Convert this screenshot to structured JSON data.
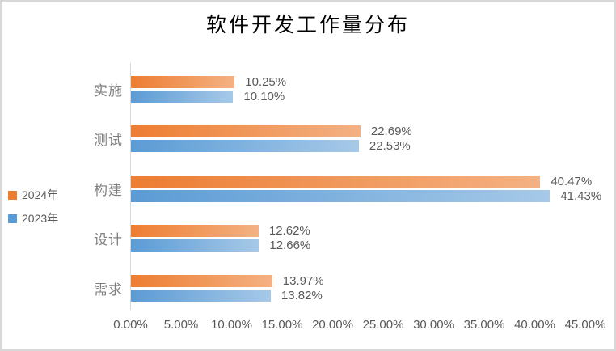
{
  "window": {
    "background": "#ffffff",
    "border_color": "#d8d8d8",
    "axis_line_color": "#d9d9d9",
    "text_color": "#595959",
    "category_text_color": "#7f7f7f"
  },
  "chart_data": {
    "type": "bar",
    "orientation": "horizontal",
    "title": "软件开发工作量分布",
    "categories": [
      "实施",
      "测试",
      "构建",
      "设计",
      "需求"
    ],
    "series": [
      {
        "name": "2024年",
        "color_start": "#ED7D31",
        "color_end": "#F4B183",
        "values": [
          10.25,
          22.69,
          40.47,
          12.62,
          13.97
        ],
        "labels": [
          "10.25%",
          "22.69%",
          "40.47%",
          "12.62%",
          "13.97%"
        ]
      },
      {
        "name": "2023年",
        "color_start": "#5B9BD5",
        "color_end": "#A6C9E8",
        "values": [
          10.1,
          22.53,
          41.43,
          12.66,
          13.82
        ],
        "labels": [
          "10.10%",
          "22.53%",
          "41.43%",
          "12.66%",
          "13.82%"
        ]
      }
    ],
    "x_ticks": [
      "0.00%",
      "5.00%",
      "10.00%",
      "15.00%",
      "20.00%",
      "25.00%",
      "30.00%",
      "35.00%",
      "40.00%",
      "45.00%"
    ],
    "xlim": [
      0,
      45
    ],
    "legend_position": "left",
    "grid": false
  }
}
